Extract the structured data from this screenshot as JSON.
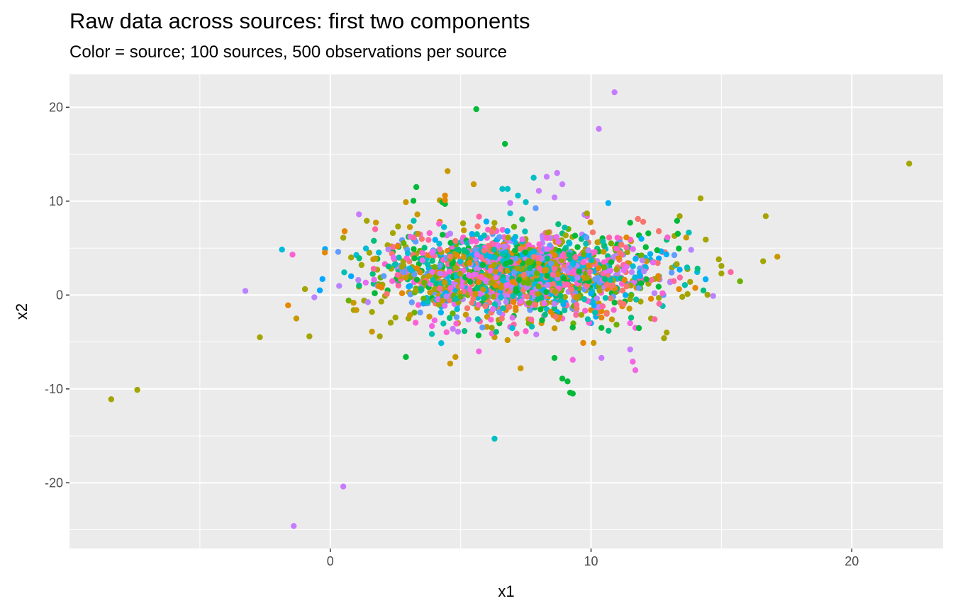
{
  "chart_data": {
    "type": "scatter",
    "title": "Raw data across sources: first two components",
    "subtitle": "Color = source;  100 sources,  500 observations per source",
    "xlabel": "x1",
    "ylabel": "x2",
    "xlim": [
      -10,
      23.5
    ],
    "ylim": [
      -27,
      23.5
    ],
    "x_ticks": [
      0,
      10,
      20
    ],
    "y_ticks": [
      20,
      10,
      0,
      -10,
      -20
    ],
    "x_tick_labels": [
      "0",
      "10",
      "20"
    ],
    "y_tick_labels": [
      "20",
      "10",
      "0",
      "-10",
      "-20"
    ],
    "grid": true,
    "legend": "none",
    "palette": [
      "#F8766D",
      "#E58700",
      "#C99800",
      "#A3A500",
      "#6BB100",
      "#00BA38",
      "#00BF7D",
      "#00C0AF",
      "#00BCD8",
      "#00B0F6",
      "#619CFF",
      "#B983FF",
      "#E76BF3",
      "#FD61D1",
      "#FF67A4"
    ],
    "series": [
      {
        "color": "#A3A500",
        "x": [
          -8.4,
          -7.4,
          -2.7,
          -0.8,
          22.2,
          16.7,
          16.6,
          14.2,
          14.4,
          15.0,
          15.0,
          13.4,
          12.8,
          12.9,
          13.7,
          11.6,
          12.3,
          0.5,
          0.8,
          1.2,
          1.5,
          1.8,
          2.0,
          2.2,
          2.4,
          2.8,
          3.1,
          1.3,
          1.6,
          1.1,
          2.6,
          2.9,
          3.3,
          12.4,
          12.6,
          11.8,
          11.2,
          10.4,
          9.8,
          13.1,
          13.5,
          13.2,
          11.9,
          12.2,
          1.9,
          2.1,
          2.5,
          1.4,
          1.7,
          0.9,
          3.5,
          3.0,
          14.9,
          13.8
        ],
        "y": [
          -11.1,
          -10.1,
          -4.5,
          -4.4,
          14.0,
          8.4,
          3.6,
          10.3,
          5.9,
          3.1,
          2.3,
          8.4,
          -4.6,
          -4.0,
          0.1,
          1.5,
          -2.5,
          6.1,
          4.0,
          3.2,
          4.5,
          2.7,
          1.1,
          5.3,
          6.6,
          3.6,
          2.1,
          -0.6,
          -1.8,
          0.9,
          7.3,
          5.1,
          4.4,
          3.5,
          -0.3,
          1.9,
          -1.0,
          2.2,
          0.5,
          2.9,
          -0.2,
          6.3,
          -0.7,
          1.2,
          -4.4,
          -0.1,
          -2.4,
          7.9,
          0.2,
          -1.6,
          0.8,
          -2.5,
          3.8,
          1.4
        ]
      },
      {
        "color": "#C99800",
        "x": [
          -1.3,
          4.5,
          5.5,
          4.2,
          2.9,
          10.1,
          10.8,
          4.8,
          4.6,
          7.3,
          1.0,
          1.6,
          4.9,
          6.3,
          5.2,
          6.8,
          8.1,
          8.6,
          9.4,
          10.6,
          6.0,
          3.8,
          5.9,
          7.6,
          9.0,
          10.3
        ],
        "y": [
          -2.5,
          13.2,
          11.8,
          10.1,
          9.9,
          -5.1,
          -2.6,
          -6.6,
          -7.3,
          -7.8,
          -1.6,
          -3.9,
          -3.0,
          -4.5,
          -2.1,
          -1.1,
          -3.0,
          -1.4,
          -0.6,
          -1.9,
          -3.4,
          -2.3,
          -0.5,
          -2.6,
          -1.3,
          -0.9
        ]
      },
      {
        "color": "#00BA38",
        "x": [
          5.6,
          6.7,
          3.3,
          4.3,
          4.4,
          2.9,
          8.9,
          9.1,
          9.2,
          9.3,
          8.6,
          10.4,
          11.5,
          13.3,
          12.1,
          3.0,
          3.6,
          4.1,
          5.3,
          6.4,
          7.0,
          7.8,
          8.4,
          9.7,
          10.9,
          2.4,
          2.7,
          3.4,
          4.7,
          5.8,
          6.9,
          7.4,
          8.2,
          9.5,
          10.7,
          11.3,
          2.2,
          2.6,
          3.2,
          3.9,
          4.6,
          5.1,
          6.2,
          7.1,
          8.0,
          8.8
        ],
        "y": [
          19.8,
          16.1,
          11.5,
          9.9,
          9.7,
          -6.6,
          -8.9,
          -9.2,
          -10.4,
          -10.5,
          -6.7,
          -3.5,
          7.7,
          7.9,
          5.1,
          6.2,
          4.3,
          2.6,
          5.0,
          3.8,
          1.2,
          -0.4,
          2.9,
          1.7,
          -0.8,
          4.6,
          2.4,
          3.3,
          0.9,
          2.1,
          4.2,
          1.8,
          -1.1,
          0.3,
          2.5,
          -0.7,
          0.5,
          1.4,
          4.9,
          -0.3,
          3.1,
          6.0,
          -1.7,
          0.6,
          2.2,
          -2.0
        ]
      },
      {
        "color": "#00BFC4",
        "x": [
          6.3,
          7.8,
          6.6,
          6.8,
          7.2,
          7.5,
          6.9,
          3.3,
          4.6,
          5.2,
          5.9,
          6.5,
          7.0,
          7.7,
          8.3,
          8.9,
          9.6,
          10.1,
          4.0,
          4.8,
          5.5,
          6.1,
          6.7,
          7.3,
          7.9,
          8.5,
          3.7,
          4.3,
          5.0,
          5.7,
          6.4,
          7.1
        ],
        "y": [
          -15.3,
          12.5,
          11.3,
          11.3,
          10.6,
          9.9,
          8.7,
          6.5,
          4.2,
          2.8,
          5.1,
          3.6,
          1.7,
          4.4,
          2.3,
          0.8,
          3.0,
          1.5,
          2.0,
          0.4,
          -0.9,
          3.3,
          4.8,
          2.5,
          -0.2,
          1.1,
          3.9,
          1.3,
          5.6,
          0.7,
          -1.4,
          6.2
        ]
      },
      {
        "color": "#00A9FF",
        "x": [
          -0.2,
          -0.3,
          -0.4,
          0.8,
          4.2,
          4.9,
          5.6,
          6.2,
          6.9,
          7.5,
          8.2,
          8.8,
          9.5,
          10.2,
          11.0,
          11.8,
          12.6,
          3.6,
          4.5,
          5.3,
          6.0,
          6.6,
          7.3,
          8.0,
          8.7,
          9.3,
          10.0,
          13.4
        ],
        "y": [
          4.9,
          1.7,
          0.5,
          2.0,
          2.7,
          1.3,
          3.5,
          0.6,
          2.4,
          4.1,
          1.8,
          -0.4,
          3.2,
          0.9,
          2.6,
          1.4,
          3.9,
          1.9,
          -0.6,
          4.3,
          2.2,
          0.2,
          3.0,
          1.0,
          -1.8,
          2.8,
          -3.0,
          2.7
        ]
      },
      {
        "color": "#C77CFF",
        "x": [
          10.9,
          10.3,
          8.7,
          8.9,
          8.3,
          8.6,
          0.5,
          -1.4,
          1.1,
          11.5,
          4.9,
          6.2,
          7.6,
          8.0,
          9.2,
          10.4,
          5.3,
          4.7,
          6.9,
          7.9
        ],
        "y": [
          21.6,
          17.7,
          13.0,
          11.8,
          12.6,
          10.4,
          -20.4,
          -24.6,
          8.6,
          -5.8,
          -3.9,
          2.1,
          3.4,
          11.1,
          1.0,
          -6.7,
          -2.6,
          -3.6,
          9.8,
          -4.2
        ]
      },
      {
        "color": "#F8766D",
        "x": [
          11.8,
          12.0,
          12.6,
          10.5,
          7.9,
          8.6,
          9.2,
          9.8,
          10.7,
          11.4,
          5.2,
          6.1,
          6.8,
          7.4,
          8.1,
          9.0,
          9.9,
          10.6,
          11.1,
          4.3,
          5.0,
          5.8,
          6.5,
          7.2,
          8.4,
          9.4
        ],
        "y": [
          8.1,
          7.8,
          6.8,
          5.2,
          3.2,
          1.6,
          4.5,
          2.9,
          0.7,
          3.4,
          1.5,
          -0.8,
          2.6,
          4.9,
          0.3,
          -1.2,
          5.6,
          -2.0,
          6.0,
          -0.5,
          3.8,
          2.0,
          -1.5,
          5.4,
          6.7,
          2.4
        ]
      },
      {
        "color": "#E58700",
        "x": [
          4.4,
          4.4,
          4.2,
          9.7,
          10.4,
          11.2,
          3.9,
          5.5,
          6.7,
          7.7,
          8.5,
          9.3,
          10.0,
          10.9,
          12.3
        ],
        "y": [
          10.6,
          10.1,
          7.8,
          -5.1,
          -2.4,
          -1.2,
          2.9,
          4.7,
          1.1,
          -2.9,
          3.6,
          0.2,
          -1.6,
          4.1,
          -0.4
        ]
      },
      {
        "color": "#F564E3",
        "x": [
          11.6,
          11.7,
          11.5,
          11.7,
          6.2,
          9.3,
          6.9,
          3.9,
          4.0,
          4.1,
          3.6,
          5.7,
          7.0,
          8.2,
          9.6,
          10.3,
          11.0,
          12.1,
          5.1,
          6.4,
          7.8,
          8.9
        ],
        "y": [
          -7.1,
          -8.0,
          -3.0,
          -3.5,
          -4.1,
          -6.9,
          -3.4,
          -3.3,
          -2.7,
          0.5,
          1.6,
          -6.0,
          -0.5,
          -2.2,
          1.3,
          2.1,
          0.4,
          1.7,
          5.7,
          4.6,
          -1.0,
          -2.5
        ]
      }
    ]
  }
}
